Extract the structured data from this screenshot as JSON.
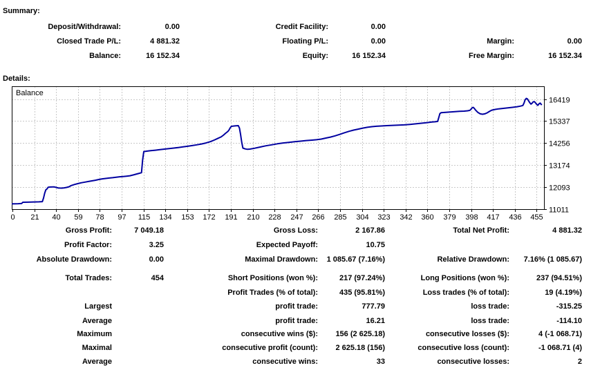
{
  "summary": {
    "title": "Summary:",
    "rows": [
      {
        "cells": [
          "Deposit/Withdrawal:",
          "0.00",
          "Credit Facility:",
          "0.00",
          "",
          ""
        ]
      },
      {
        "cells": [
          "Closed Trade P/L:",
          "4 881.32",
          "Floating P/L:",
          "0.00",
          "Margin:",
          "0.00"
        ]
      },
      {
        "cells": [
          "Balance:",
          "16 152.34",
          "Equity:",
          "16 152.34",
          "Free Margin:",
          "16 152.34"
        ]
      }
    ]
  },
  "details": {
    "title": "Details:",
    "rows": [
      {
        "cells": [
          "Gross Profit:",
          "7 049.18",
          "Gross Loss:",
          "2 167.86",
          "Total Net Profit:",
          "4 881.32"
        ]
      },
      {
        "cells": [
          "Profit Factor:",
          "3.25",
          "Expected Payoff:",
          "10.75",
          "",
          ""
        ]
      },
      {
        "cells": [
          "Absolute Drawdown:",
          "0.00",
          "Maximal Drawdown:",
          "1 085.67 (7.16%)",
          "Relative Drawdown:",
          "7.16% (1 085.67)"
        ]
      },
      {
        "cells": [
          "Total Trades:",
          "454",
          "Short Positions (won %):",
          "217 (97.24%)",
          "Long Positions (won %):",
          "237 (94.51%)"
        ]
      },
      {
        "cells": [
          "",
          "",
          "Profit Trades (% of total):",
          "435 (95.81%)",
          "Loss trades (% of total):",
          "19 (4.19%)"
        ]
      },
      {
        "cells": [
          "Largest",
          "",
          "profit trade:",
          "777.79",
          "loss trade:",
          "-315.25"
        ]
      },
      {
        "cells": [
          "Average",
          "",
          "profit trade:",
          "16.21",
          "loss trade:",
          "-114.10"
        ]
      },
      {
        "cells": [
          "Maximum",
          "",
          "consecutive wins ($):",
          "156 (2 625.18)",
          "consecutive losses ($):",
          "4 (-1 068.71)"
        ]
      },
      {
        "cells": [
          "Maximal",
          "",
          "consecutive profit (count):",
          "2 625.18 (156)",
          "consecutive loss (count):",
          "-1 068.71 (4)"
        ]
      },
      {
        "cells": [
          "Average",
          "",
          "consecutive wins:",
          "33",
          "consecutive losses:",
          "2"
        ]
      }
    ]
  },
  "chart_data": {
    "type": "line",
    "title": "Balance",
    "xlabel": "",
    "ylabel": "",
    "x_ticks": [
      0,
      21,
      40,
      59,
      78,
      97,
      115,
      134,
      153,
      172,
      191,
      210,
      228,
      247,
      266,
      285,
      304,
      323,
      342,
      360,
      379,
      398,
      417,
      436,
      455
    ],
    "y_ticks": [
      16419,
      15337,
      14256,
      13174,
      12093,
      11011
    ],
    "x_range": [
      0,
      461
    ],
    "y_range": [
      11011,
      17046
    ],
    "grid": "dashed",
    "legend_position": "none",
    "line_color": "#0000a0",
    "grid_color": "#c8c8c8",
    "series": [
      {
        "name": "Balance",
        "points": [
          [
            0,
            11271
          ],
          [
            5,
            11280
          ],
          [
            8,
            11288
          ],
          [
            9,
            11350
          ],
          [
            13,
            11355
          ],
          [
            18,
            11362
          ],
          [
            23,
            11370
          ],
          [
            26,
            11380
          ],
          [
            27,
            11560
          ],
          [
            28,
            11800
          ],
          [
            29,
            11960
          ],
          [
            30,
            12005
          ],
          [
            31,
            12090
          ],
          [
            33,
            12100
          ],
          [
            36,
            12105
          ],
          [
            38,
            12080
          ],
          [
            40,
            12050
          ],
          [
            43,
            12045
          ],
          [
            45,
            12060
          ],
          [
            47,
            12080
          ],
          [
            49,
            12110
          ],
          [
            51,
            12170
          ],
          [
            54,
            12225
          ],
          [
            57,
            12270
          ],
          [
            60,
            12310
          ],
          [
            63,
            12340
          ],
          [
            66,
            12372
          ],
          [
            69,
            12400
          ],
          [
            72,
            12432
          ],
          [
            75,
            12468
          ],
          [
            78,
            12500
          ],
          [
            81,
            12520
          ],
          [
            84,
            12540
          ],
          [
            87,
            12556
          ],
          [
            90,
            12580
          ],
          [
            93,
            12600
          ],
          [
            96,
            12615
          ],
          [
            99,
            12632
          ],
          [
            102,
            12652
          ],
          [
            105,
            12692
          ],
          [
            108,
            12740
          ],
          [
            110,
            12772
          ],
          [
            112,
            12800
          ],
          [
            113,
            13420
          ],
          [
            114,
            13840
          ],
          [
            117,
            13862
          ],
          [
            120,
            13882
          ],
          [
            124,
            13906
          ],
          [
            128,
            13932
          ],
          [
            132,
            13960
          ],
          [
            136,
            13986
          ],
          [
            140,
            14010
          ],
          [
            144,
            14040
          ],
          [
            148,
            14070
          ],
          [
            152,
            14100
          ],
          [
            156,
            14135
          ],
          [
            160,
            14170
          ],
          [
            164,
            14212
          ],
          [
            168,
            14262
          ],
          [
            172,
            14330
          ],
          [
            175,
            14400
          ],
          [
            178,
            14478
          ],
          [
            181,
            14558
          ],
          [
            183,
            14640
          ],
          [
            185,
            14740
          ],
          [
            187,
            14830
          ],
          [
            188,
            14905
          ],
          [
            189,
            15005
          ],
          [
            190,
            15080
          ],
          [
            193,
            15100
          ],
          [
            196,
            15112
          ],
          [
            197,
            15000
          ],
          [
            198,
            14690
          ],
          [
            199,
            14300
          ],
          [
            200,
            14012
          ],
          [
            202,
            13972
          ],
          [
            204,
            13952
          ],
          [
            206,
            13962
          ],
          [
            210,
            14002
          ],
          [
            215,
            14062
          ],
          [
            220,
            14122
          ],
          [
            225,
            14172
          ],
          [
            230,
            14222
          ],
          [
            235,
            14262
          ],
          [
            240,
            14292
          ],
          [
            245,
            14322
          ],
          [
            250,
            14352
          ],
          [
            255,
            14380
          ],
          [
            260,
            14402
          ],
          [
            264,
            14422
          ],
          [
            268,
            14452
          ],
          [
            272,
            14502
          ],
          [
            276,
            14552
          ],
          [
            280,
            14612
          ],
          [
            284,
            14682
          ],
          [
            288,
            14762
          ],
          [
            292,
            14832
          ],
          [
            296,
            14892
          ],
          [
            300,
            14942
          ],
          [
            304,
            14992
          ],
          [
            308,
            15032
          ],
          [
            312,
            15062
          ],
          [
            316,
            15082
          ],
          [
            320,
            15096
          ],
          [
            325,
            15112
          ],
          [
            330,
            15126
          ],
          [
            335,
            15136
          ],
          [
            340,
            15152
          ],
          [
            345,
            15176
          ],
          [
            350,
            15202
          ],
          [
            355,
            15232
          ],
          [
            360,
            15262
          ],
          [
            364,
            15290
          ],
          [
            367,
            15302
          ],
          [
            369,
            15322
          ],
          [
            370,
            15500
          ],
          [
            371,
            15702
          ],
          [
            372,
            15746
          ],
          [
            376,
            15766
          ],
          [
            380,
            15786
          ],
          [
            384,
            15802
          ],
          [
            388,
            15816
          ],
          [
            392,
            15826
          ],
          [
            395,
            15842
          ],
          [
            397,
            15862
          ],
          [
            398,
            15922
          ],
          [
            399,
            15992
          ],
          [
            400,
            16012
          ],
          [
            401,
            15952
          ],
          [
            402,
            15872
          ],
          [
            404,
            15762
          ],
          [
            406,
            15692
          ],
          [
            408,
            15672
          ],
          [
            410,
            15692
          ],
          [
            412,
            15742
          ],
          [
            414,
            15812
          ],
          [
            416,
            15872
          ],
          [
            419,
            15912
          ],
          [
            422,
            15936
          ],
          [
            426,
            15962
          ],
          [
            430,
            15986
          ],
          [
            434,
            16012
          ],
          [
            438,
            16042
          ],
          [
            441,
            16072
          ],
          [
            443,
            16102
          ],
          [
            444,
            16222
          ],
          [
            445,
            16382
          ],
          [
            446,
            16452
          ],
          [
            447,
            16422
          ],
          [
            448,
            16332
          ],
          [
            449,
            16242
          ],
          [
            450,
            16172
          ],
          [
            451,
            16212
          ],
          [
            452,
            16282
          ],
          [
            453,
            16292
          ],
          [
            454,
            16232
          ],
          [
            455,
            16162
          ],
          [
            456,
            16112
          ],
          [
            457,
            16182
          ],
          [
            458,
            16222
          ],
          [
            459,
            16152
          ]
        ]
      }
    ]
  }
}
